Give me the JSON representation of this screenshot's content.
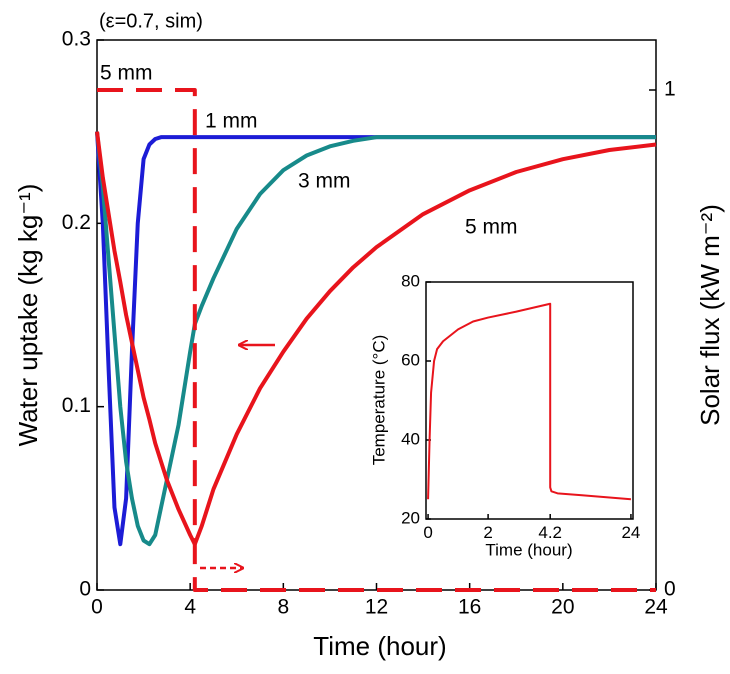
{
  "chart_data": [
    {
      "type": "line",
      "title": "(ε=0.7, sim)",
      "x_label": "Time (hour)",
      "y_label": "Water uptake (kg kg⁻¹)",
      "y2_label": "Solar flux (kW m⁻²)",
      "x": [
        0,
        0.25,
        0.5,
        0.75,
        1,
        1.25,
        1.5,
        1.75,
        2,
        2.25,
        2.5,
        2.75,
        3,
        3.5,
        4,
        4.2,
        4.5,
        5,
        6,
        7,
        8,
        9,
        10,
        11,
        12,
        14,
        16,
        18,
        20,
        22,
        24
      ],
      "xlim": [
        0,
        24
      ],
      "xticks": [
        0,
        4,
        8,
        12,
        16,
        20,
        24
      ],
      "ylim": [
        0,
        0.3
      ],
      "yticks": [
        0,
        0.1,
        0.2,
        0.3
      ],
      "y2lim": [
        0,
        1.1
      ],
      "y2ticks": [
        0,
        1
      ],
      "series": [
        {
          "name": "1 mm",
          "color": "#1c1cd6",
          "values": [
            0.25,
            0.2,
            0.12,
            0.045,
            0.025,
            0.05,
            0.13,
            0.2,
            0.235,
            0.243,
            0.246,
            0.247,
            0.247,
            0.247,
            0.247,
            0.247,
            0.247,
            0.247,
            0.247,
            0.247,
            0.247,
            0.247,
            0.247,
            0.247,
            0.247,
            0.247,
            0.247,
            0.247,
            0.247,
            0.247,
            0.247
          ]
        },
        {
          "name": "3 mm",
          "color": "#178a8a",
          "values": [
            0.25,
            0.22,
            0.18,
            0.14,
            0.1,
            0.07,
            0.05,
            0.035,
            0.027,
            0.025,
            0.03,
            0.045,
            0.06,
            0.09,
            0.13,
            0.145,
            0.155,
            0.17,
            0.197,
            0.216,
            0.229,
            0.237,
            0.242,
            0.245,
            0.247,
            0.247,
            0.247,
            0.247,
            0.247,
            0.247,
            0.247
          ]
        },
        {
          "name": "5 mm",
          "color": "#e8141c",
          "values": [
            0.25,
            0.225,
            0.205,
            0.185,
            0.168,
            0.15,
            0.135,
            0.12,
            0.105,
            0.093,
            0.08,
            0.07,
            0.06,
            0.044,
            0.03,
            0.025,
            0.035,
            0.055,
            0.085,
            0.11,
            0.13,
            0.148,
            0.163,
            0.176,
            0.187,
            0.205,
            0.218,
            0.228,
            0.235,
            0.24,
            0.243
          ]
        },
        {
          "name": "5 mm",
          "color": "#e8141c",
          "axis": "y2",
          "dashed": true,
          "x": [
            0,
            4.2,
            4.2,
            24
          ],
          "values": [
            1,
            1,
            0,
            0
          ]
        }
      ]
    },
    {
      "type": "line",
      "x_label": "Time (hour)",
      "y_label": "Temperature (°C)",
      "x": [
        0,
        0.05,
        0.1,
        0.2,
        0.3,
        0.5,
        1,
        1.5,
        2,
        3,
        4.2,
        4.2,
        4.5,
        6,
        12,
        24
      ],
      "xlim": [
        0,
        24
      ],
      "xticks": [
        0,
        2,
        4.2,
        24
      ],
      "ylim": [
        20,
        80
      ],
      "yticks": [
        20,
        40,
        60,
        80
      ],
      "series": [
        {
          "color": "#e8141c",
          "values": [
            25,
            40,
            52,
            60,
            63,
            65,
            68,
            70,
            71,
            72.5,
            74.5,
            28,
            27,
            26.5,
            26,
            25
          ]
        }
      ]
    }
  ]
}
